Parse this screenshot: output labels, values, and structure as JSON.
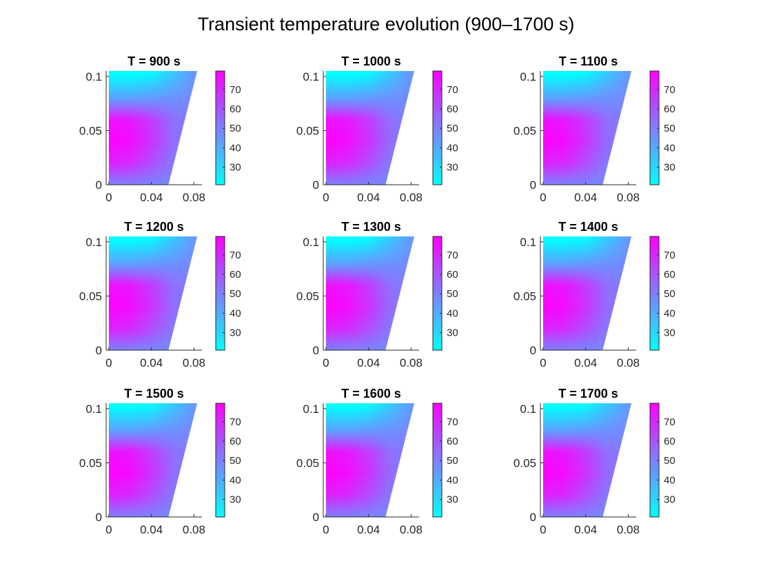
{
  "title": "Transient temperature evolution (900–1700 s)",
  "chart_data": {
    "type": "heatmap",
    "title": "Transient temperature evolution (900–1700 s)",
    "colormap": "cool",
    "colormap_endpoints": [
      "#00ffff",
      "#ff00ff"
    ],
    "layout": "3x3 subplots",
    "xlim": [
      -0.0025,
      0.0875
    ],
    "ylim": [
      0,
      0.105
    ],
    "xticks": [
      0,
      0.04,
      0.08
    ],
    "xtick_labels": [
      "0",
      "0.04",
      "0.08"
    ],
    "yticks": [
      0,
      0.05,
      0.1
    ],
    "ytick_labels": [
      "0",
      "0.05",
      "0.1"
    ],
    "clim": [
      21,
      79.5
    ],
    "colorbar_ticks": [
      30,
      40,
      50,
      60,
      70
    ],
    "colorbar_tick_labels": [
      "30",
      "40",
      "50",
      "60",
      "70"
    ],
    "domain_polygon": [
      [
        0,
        0
      ],
      [
        0.056,
        0
      ],
      [
        0.083,
        0.105
      ],
      [
        0,
        0.105
      ]
    ],
    "grid_x": [
      0,
      0.02,
      0.04,
      0.06,
      0.08
    ],
    "grid_y": [
      0,
      0.02,
      0.04,
      0.06,
      0.08,
      0.1
    ],
    "subplots": [
      {
        "title": "T = 900 s",
        "time": 900
      },
      {
        "title": "T = 1000 s",
        "time": 1000
      },
      {
        "title": "T = 1100 s",
        "time": 1100
      },
      {
        "title": "T = 1200 s",
        "time": 1200
      },
      {
        "title": "T = 1300 s",
        "time": 1300
      },
      {
        "title": "T = 1400 s",
        "time": 1400
      },
      {
        "title": "T = 1500 s",
        "time": 1500
      },
      {
        "title": "T = 1600 s",
        "time": 1600
      },
      {
        "title": "T = 1700 s",
        "time": 1700
      }
    ],
    "temperature_grid": [
      [
        50,
        50,
        49,
        48,
        48
      ],
      [
        72,
        70,
        62,
        52,
        50
      ],
      [
        79,
        77,
        68,
        55,
        50
      ],
      [
        76,
        74,
        66,
        54,
        50
      ],
      [
        42,
        42,
        44,
        46,
        48
      ],
      [
        23,
        23,
        25,
        35,
        45
      ]
    ]
  }
}
